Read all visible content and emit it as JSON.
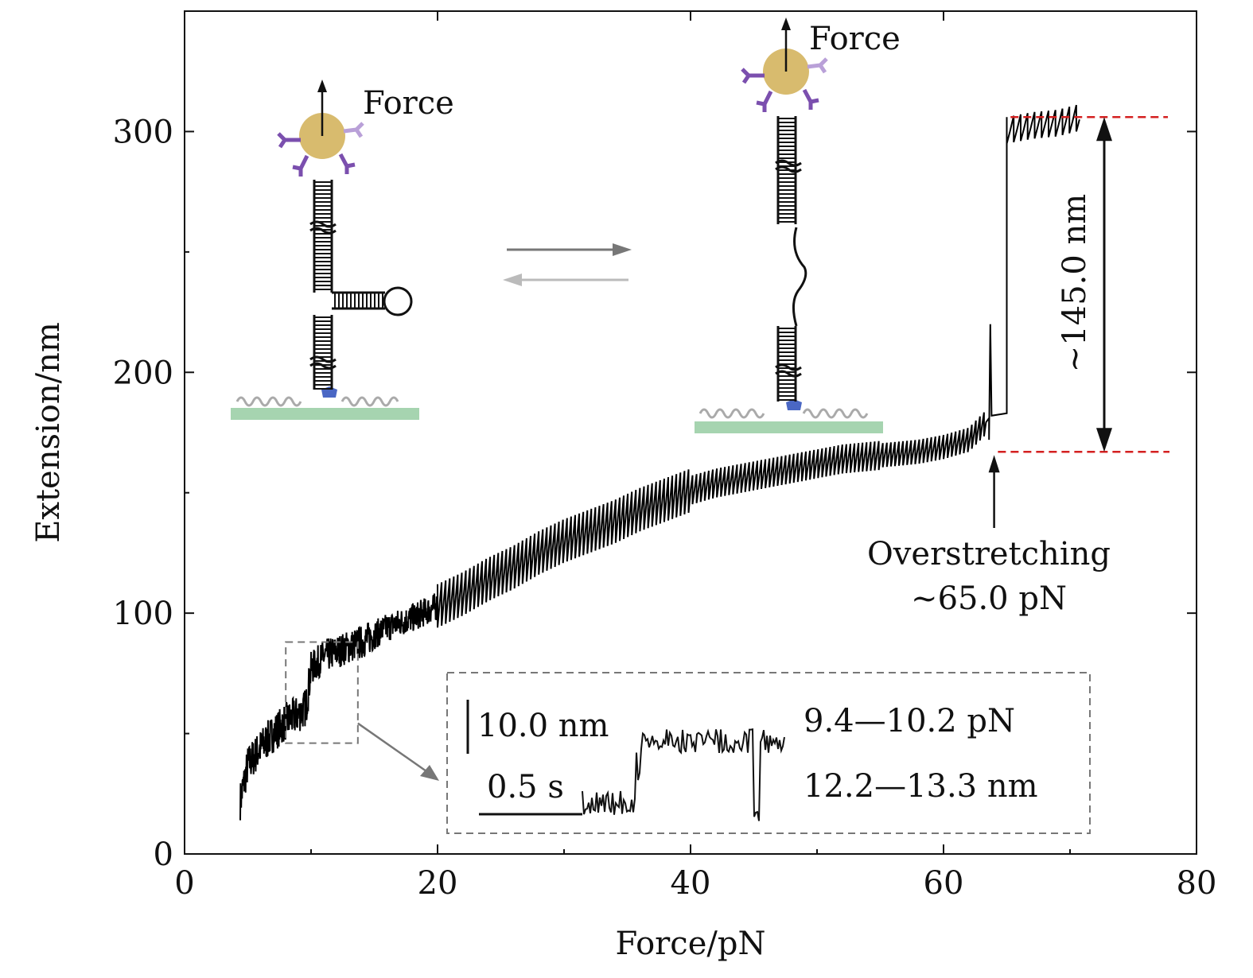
{
  "chart_data": {
    "type": "line",
    "title": "",
    "xlabel": "Force/pN",
    "ylabel": "Extension/nm",
    "xlim": [
      0,
      80
    ],
    "ylim": [
      0,
      350
    ],
    "x_ticks": [
      0,
      20,
      40,
      60,
      80
    ],
    "x_tick_labels": [
      "0",
      "20",
      "40",
      "60",
      "80"
    ],
    "y_ticks": [
      0,
      100,
      200,
      300
    ],
    "y_tick_labels": [
      "0",
      "100",
      "200",
      "300"
    ],
    "grid": false,
    "series": [
      {
        "name": "extension-force trace",
        "color": "#000000",
        "x": [
          4.4,
          5,
          6,
          7,
          8,
          9,
          9.6,
          10,
          11,
          12,
          13,
          14,
          15,
          16,
          17,
          18,
          20,
          22,
          24,
          26,
          28,
          30,
          32,
          34,
          36,
          38,
          40,
          42,
          44,
          46,
          48,
          50,
          52,
          54,
          56,
          58,
          60,
          62,
          63.5,
          65,
          67,
          69,
          70.5
        ],
        "y": [
          22,
          37,
          44,
          50,
          55,
          58,
          61,
          77,
          82,
          84,
          86,
          88,
          91,
          94,
          96,
          98,
          103,
          108,
          114,
          119,
          125,
          130,
          134,
          138,
          143,
          147,
          151,
          154,
          156,
          158,
          160,
          162,
          164,
          165,
          166,
          167,
          169,
          172,
          180,
          300,
          302,
          303,
          305
        ]
      }
    ],
    "annotations": {
      "force_top_right": "Force",
      "force_top_left": "Force",
      "overstretch_line1": "Overstretching",
      "overstretch_line2": "~65.0 pN",
      "overstretch_force": 64.0,
      "jump": "~145.0 nm",
      "jump_low": 167,
      "jump_high": 306,
      "inset_scale_y": "10.0 nm",
      "inset_scale_x": "0.5 s",
      "inset_force_range": "9.4—10.2 pN",
      "inset_extension_range": "12.2—13.3 nm",
      "zoom_box_x": [
        8,
        13.7
      ],
      "zoom_box_y": [
        46,
        88
      ]
    },
    "colors": {
      "trace": "#000000",
      "reference_line": "#d42020",
      "bead": "#d8bb6e",
      "antibody": "#7b4fae",
      "antibody_light": "#b9a0d8",
      "surface": "#a6d4b0",
      "anchor": "#4a67c4",
      "arrow_forward": "#777777",
      "arrow_back": "#bbbbbb",
      "zoom_box": "#777777"
    }
  }
}
